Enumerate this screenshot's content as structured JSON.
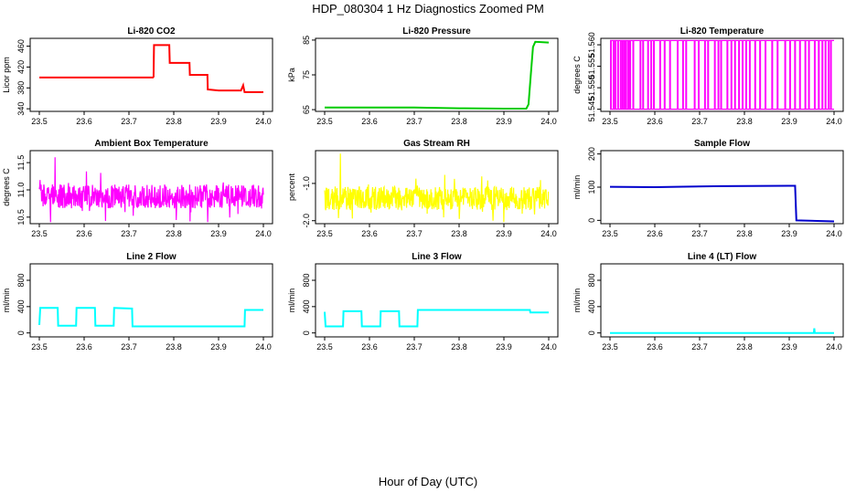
{
  "figure": {
    "title": "HDP_080304  1 Hz Diagnostics Zoomed PM",
    "xlabel": "Hour of Day (UTC)"
  },
  "chart_data": [
    {
      "type": "line",
      "title": "Li-820 CO2",
      "ylabel": "Licor ppm",
      "color": "#ff0000",
      "xlim": [
        23.5,
        24.0
      ],
      "ylim": [
        335,
        475
      ],
      "xticks": [
        "23.5",
        "23.6",
        "23.7",
        "23.8",
        "23.9",
        "24.0"
      ],
      "yticks": [
        "340",
        "380",
        "420",
        "460"
      ],
      "segments": [
        [
          [
            23.5,
            400
          ],
          [
            23.755,
            400
          ]
        ],
        [
          [
            23.755,
            400
          ],
          [
            23.756,
            462
          ],
          [
            23.79,
            462
          ],
          [
            23.791,
            428
          ],
          [
            23.835,
            428
          ],
          [
            23.836,
            405
          ],
          [
            23.875,
            405
          ],
          [
            23.876,
            377
          ],
          [
            23.9,
            375
          ],
          [
            23.95,
            375
          ],
          [
            23.955,
            385
          ],
          [
            23.958,
            372
          ],
          [
            24.0,
            372
          ]
        ]
      ]
    },
    {
      "type": "line",
      "title": "Li-820 Pressure",
      "ylabel": "kPa",
      "color": "#00cc00",
      "xlim": [
        23.5,
        24.0
      ],
      "ylim": [
        64.5,
        85.5
      ],
      "xticks": [
        "23.5",
        "23.6",
        "23.7",
        "23.8",
        "23.9",
        "24.0"
      ],
      "yticks": [
        "65",
        "75",
        "85"
      ],
      "segments": [
        [
          [
            23.5,
            65.6
          ],
          [
            23.7,
            65.6
          ],
          [
            23.8,
            65.4
          ],
          [
            23.9,
            65.3
          ],
          [
            23.95,
            65.3
          ],
          [
            23.955,
            66.5
          ],
          [
            23.96,
            75
          ],
          [
            23.965,
            83
          ],
          [
            23.97,
            84.5
          ],
          [
            24.0,
            84.3
          ]
        ]
      ]
    },
    {
      "type": "bar",
      "title": "Li-820 Temperature",
      "ylabel": "degrees C",
      "color": "#ff00ff",
      "xlim": [
        23.5,
        24.0
      ],
      "ylim": [
        51.5445,
        51.5615
      ],
      "xticks": [
        "23.5",
        "23.6",
        "23.7",
        "23.8",
        "23.9",
        "24.0"
      ],
      "yticks": [
        "51.545",
        "51.550",
        "51.555",
        "51.560"
      ],
      "spike_low": 51.545,
      "spike_high": 51.561,
      "spikes_x": [
        23.502,
        23.508,
        23.512,
        23.518,
        23.524,
        23.528,
        23.532,
        23.536,
        23.541,
        23.545,
        23.552,
        23.568,
        23.574,
        23.585,
        23.592,
        23.598,
        23.612,
        23.622,
        23.634,
        23.651,
        23.663,
        23.67,
        23.689,
        23.698,
        23.712,
        23.719,
        23.734,
        23.742,
        23.748,
        23.762,
        23.771,
        23.779,
        23.788,
        23.796,
        23.804,
        23.812,
        23.824,
        23.835,
        23.847,
        23.862,
        23.874,
        23.891,
        23.902,
        23.913,
        23.924,
        23.936,
        23.944,
        23.957,
        23.966,
        23.974,
        23.981,
        23.988,
        23.993
      ]
    },
    {
      "type": "line",
      "title": "Ambient Box Temperature",
      "ylabel": "degrees C",
      "color": "#ff00ff",
      "xlim": [
        23.5,
        24.0
      ],
      "ylim": [
        10.38,
        11.72
      ],
      "xticks": [
        "23.5",
        "23.6",
        "23.7",
        "23.8",
        "23.9",
        "24.0"
      ],
      "yticks": [
        "10.5",
        "11.0",
        "11.5"
      ],
      "noise": {
        "center": 10.88,
        "amplitude": 0.22,
        "peak_high": 11.6,
        "peak_low": 10.41,
        "samples": 600
      }
    },
    {
      "type": "line",
      "title": "Gas Stream RH",
      "ylabel": "percent",
      "color": "#ffff00",
      "xlim": [
        23.5,
        24.0
      ],
      "ylim": [
        -2.08,
        -0.12
      ],
      "xticks": [
        "23.5",
        "23.6",
        "23.7",
        "23.8",
        "23.9",
        "24.0"
      ],
      "yticks": [
        "-2.0",
        "-1.0"
      ],
      "noise": {
        "center": -1.4,
        "amplitude": 0.32,
        "peak_high": -0.2,
        "peak_low": -2.0,
        "samples": 600
      }
    },
    {
      "type": "line",
      "title": "Sample Flow",
      "ylabel": "ml/min",
      "color": "#0000cc",
      "xlim": [
        23.5,
        24.0
      ],
      "ylim": [
        -10,
        210
      ],
      "xticks": [
        "23.5",
        "23.6",
        "23.7",
        "23.8",
        "23.9",
        "24.0"
      ],
      "yticks": [
        "0",
        "100",
        "200"
      ],
      "segments": [
        [
          [
            23.5,
            101
          ],
          [
            23.6,
            100
          ],
          [
            23.75,
            103
          ],
          [
            23.9,
            104
          ],
          [
            23.913,
            104
          ],
          [
            23.916,
            0
          ],
          [
            24.0,
            -3
          ]
        ]
      ]
    },
    {
      "type": "line",
      "title": "Line 2 Flow",
      "ylabel": "ml/min",
      "color": "#00ffff",
      "xlim": [
        23.5,
        24.0
      ],
      "ylim": [
        -60,
        1050
      ],
      "xticks": [
        "23.5",
        "23.6",
        "23.7",
        "23.8",
        "23.9",
        "24.0"
      ],
      "yticks": [
        "0",
        "400",
        "800"
      ],
      "segments": [
        [
          [
            23.5,
            120
          ],
          [
            23.502,
            380
          ],
          [
            23.541,
            380
          ],
          [
            23.542,
            110
          ],
          [
            23.582,
            110
          ],
          [
            23.583,
            380
          ],
          [
            23.624,
            380
          ],
          [
            23.625,
            110
          ],
          [
            23.666,
            110
          ],
          [
            23.667,
            380
          ],
          [
            23.707,
            370
          ],
          [
            23.708,
            100
          ],
          [
            23.958,
            100
          ],
          [
            23.959,
            350
          ],
          [
            24.0,
            350
          ]
        ]
      ]
    },
    {
      "type": "line",
      "title": "Line 3 Flow",
      "ylabel": "ml/min",
      "color": "#00ffff",
      "xlim": [
        23.5,
        24.0
      ],
      "ylim": [
        -60,
        1050
      ],
      "xticks": [
        "23.5",
        "23.6",
        "23.7",
        "23.8",
        "23.9",
        "24.0"
      ],
      "yticks": [
        "0",
        "400",
        "800"
      ],
      "segments": [
        [
          [
            23.5,
            320
          ],
          [
            23.502,
            100
          ],
          [
            23.541,
            100
          ],
          [
            23.542,
            330
          ],
          [
            23.582,
            330
          ],
          [
            23.583,
            100
          ],
          [
            23.624,
            100
          ],
          [
            23.625,
            330
          ],
          [
            23.666,
            330
          ],
          [
            23.667,
            100
          ],
          [
            23.707,
            100
          ],
          [
            23.708,
            350
          ],
          [
            23.958,
            350
          ],
          [
            23.959,
            310
          ],
          [
            24.0,
            310
          ]
        ]
      ]
    },
    {
      "type": "line",
      "title": "Line 4 (LT) Flow",
      "ylabel": "ml/min",
      "color": "#00ffff",
      "xlim": [
        23.5,
        24.0
      ],
      "ylim": [
        -60,
        1050
      ],
      "xticks": [
        "23.5",
        "23.6",
        "23.7",
        "23.8",
        "23.9",
        "24.0"
      ],
      "yticks": [
        "0",
        "400",
        "800"
      ],
      "segments": [
        [
          [
            23.5,
            0
          ],
          [
            23.955,
            0
          ],
          [
            23.956,
            70
          ],
          [
            23.957,
            0
          ],
          [
            24.0,
            0
          ]
        ]
      ]
    }
  ]
}
